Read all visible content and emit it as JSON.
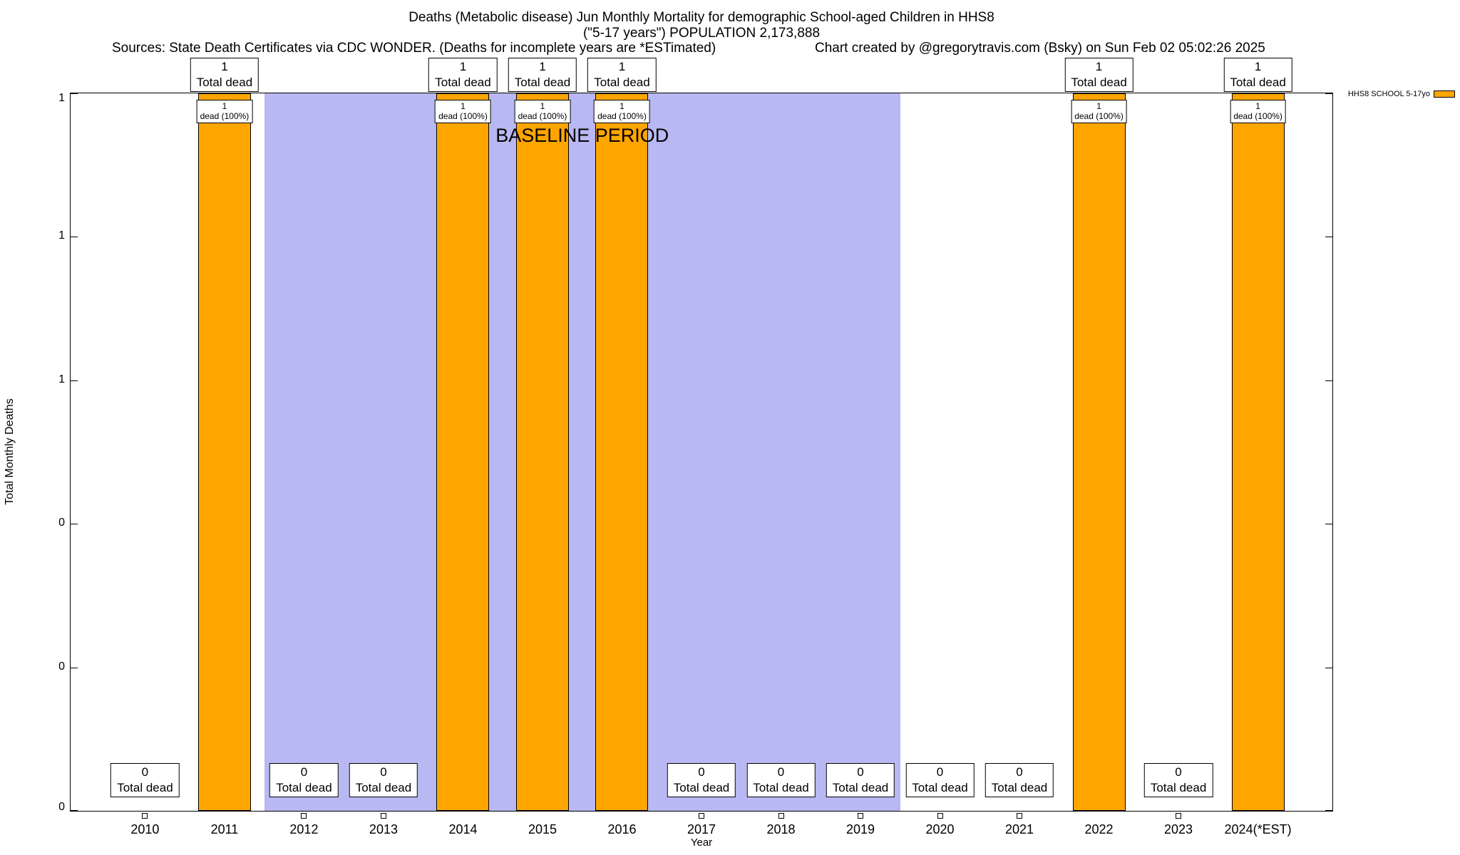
{
  "chart_data": {
    "type": "bar",
    "title": "Deaths (Metabolic disease) Jun Monthly Mortality for demographic School-aged Children in HHS8",
    "subtitle": "(\"5-17 years\") POPULATION 2,173,888",
    "sources_note": "Sources: State Death Certificates via CDC WONDER. (Deaths for incomplete years are *ESTimated)",
    "credit_note": "Chart created by @gregorytravis.com (Bsky) on Sun Feb 02 05:02:26 2025",
    "xlabel": "Year",
    "ylabel": "Total Monthly Deaths",
    "ylim": [
      0,
      1
    ],
    "ytick_values": [
      0,
      0.2,
      0.4,
      0.6,
      0.8,
      1
    ],
    "ytick_labels": [
      "0",
      "0",
      "0",
      "1",
      "1",
      "1"
    ],
    "categories": [
      "2010",
      "2011",
      "2012",
      "2013",
      "2014",
      "2015",
      "2016",
      "2017",
      "2018",
      "2019",
      "2020",
      "2021",
      "2022",
      "2023",
      "2024(*EST)"
    ],
    "values": [
      0,
      1,
      0,
      0,
      1,
      1,
      1,
      0,
      0,
      0,
      0,
      0,
      1,
      0,
      1
    ],
    "bar_color": "#FFA500",
    "bar_border_color": "#000000",
    "total_box_label": "Total dead",
    "in_bar_label": "dead (100%)",
    "baseline": {
      "label": "BASELINE PERIOD",
      "from_year": "2012",
      "to_year": "2019",
      "color": "#B8B8F2"
    },
    "legend": {
      "label": "HHS8 SCHOOL 5-17yo",
      "color": "#FFA500",
      "position": "top-right"
    },
    "grid": false
  }
}
